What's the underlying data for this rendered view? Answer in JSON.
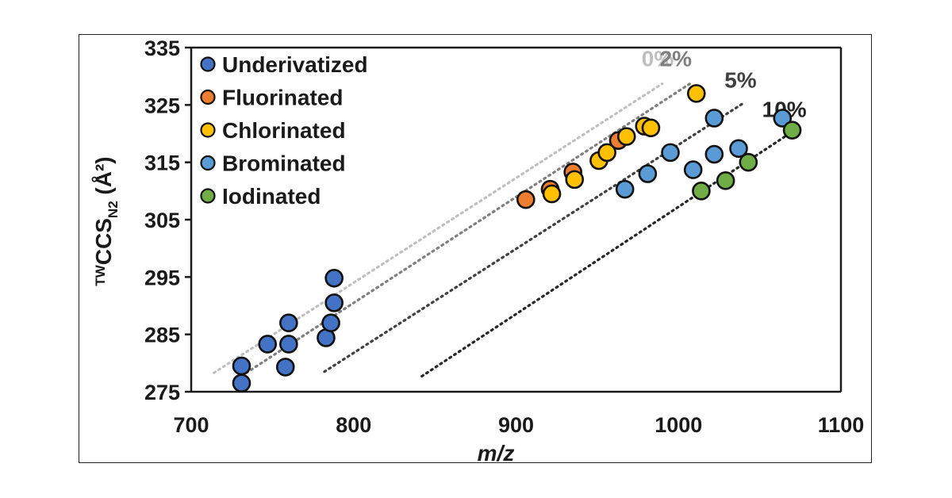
{
  "chart_data": {
    "type": "scatter",
    "xlabel": "m/z",
    "ylabel": {
      "prefix": "TW",
      "main": "CCS",
      "sub": "N2",
      "suffix": " (Å²)"
    },
    "xlim": [
      700,
      1100
    ],
    "ylim": [
      275,
      335
    ],
    "xticks": [
      700,
      800,
      900,
      1000,
      1100
    ],
    "yticks": [
      275,
      285,
      295,
      305,
      315,
      325,
      335
    ],
    "legend_position": "top-left",
    "series": [
      {
        "name": "Underivatized",
        "color": "#4472C4",
        "x": [
          731,
          731,
          747,
          758,
          760,
          760,
          783,
          786,
          788,
          788
        ],
        "y": [
          279.5,
          276.5,
          283.3,
          279.3,
          283.3,
          287.0,
          284.4,
          287.0,
          290.5,
          294.8
        ]
      },
      {
        "name": "Fluorinated",
        "color": "#ED7D31",
        "x": [
          906,
          921,
          935,
          963
        ],
        "y": [
          308.5,
          310.3,
          313.3,
          318.8
        ]
      },
      {
        "name": "Chlorinated",
        "color": "#FFC000",
        "x": [
          922,
          936,
          951,
          956,
          968,
          979,
          983,
          1011
        ],
        "y": [
          309.5,
          312.0,
          315.3,
          316.7,
          319.5,
          321.3,
          321.0,
          327.0
        ]
      },
      {
        "name": "Brominated",
        "color": "#5B9BD5",
        "x": [
          967,
          981,
          995,
          1009,
          1022,
          1037,
          1022,
          1064
        ],
        "y": [
          310.3,
          313.0,
          316.7,
          313.7,
          316.4,
          317.4,
          322.7,
          322.7
        ]
      },
      {
        "name": "Iodinated",
        "color": "#70AD47",
        "x": [
          1014,
          1029,
          1043,
          1070
        ],
        "y": [
          310.0,
          311.8,
          315.0,
          320.6
        ]
      }
    ],
    "trendlines": [
      {
        "label": "0%",
        "color": "#BFBFBF",
        "from": [
          714,
          278.3
        ],
        "to": [
          990,
          328.7
        ]
      },
      {
        "label": "2%",
        "color": "#7F7F7F",
        "from": [
          734,
          278.3
        ],
        "to": [
          1007,
          328.7
        ]
      },
      {
        "label": "5%",
        "color": "#404040",
        "from": [
          782,
          278.5
        ],
        "to": [
          1041,
          325.5
        ]
      },
      {
        "label": "10%",
        "color": "#262626",
        "from": [
          842,
          277.7
        ],
        "to": [
          1072,
          320.7
        ]
      }
    ]
  }
}
